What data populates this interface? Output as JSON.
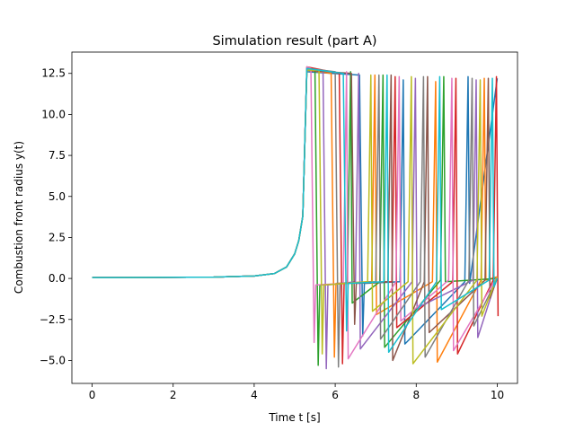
{
  "chart_data": {
    "type": "line",
    "title": "Simulation result (part A)",
    "xlabel": "Time t [s]",
    "ylabel": "Combustion front radius y(t)",
    "xlim": [
      -0.5,
      10.5
    ],
    "ylim": [
      -6.4,
      13.8
    ],
    "x_ticks": [
      0,
      2,
      4,
      6,
      8,
      10
    ],
    "y_ticks": [
      -5.0,
      -2.5,
      0.0,
      2.5,
      5.0,
      7.5,
      10.0,
      12.5
    ],
    "x_tick_labels": [
      "0",
      "2",
      "4",
      "6",
      "8",
      "10"
    ],
    "y_tick_labels": [
      "−5.0",
      "−2.5",
      "0.0",
      "2.5",
      "5.0",
      "7.5",
      "10.0",
      "12.5"
    ],
    "grid": false,
    "legend": "none",
    "colors": [
      "#1f77b4",
      "#ff7f0e",
      "#2ca02c",
      "#d62728",
      "#9467bd",
      "#8c564b",
      "#e377c2",
      "#7f7f7f",
      "#bcbd22",
      "#17becf"
    ],
    "series": [
      {
        "x": [
          0,
          3,
          4,
          4.5,
          4.8,
          5.0,
          5.1,
          5.2,
          5.3,
          6.6,
          6.68,
          6.72,
          7.6,
          7.68,
          7.72,
          9.2,
          9.28,
          9.32,
          10.0
        ],
        "y": [
          0.05,
          0.08,
          0.15,
          0.3,
          0.7,
          1.5,
          2.3,
          3.8,
          12.6,
          12.4,
          -3.5,
          -0.3,
          -0.2,
          12.1,
          -4.0,
          -0.2,
          12.3,
          -0.3,
          12.2
        ]
      },
      {
        "x": [
          0,
          3,
          4,
          4.5,
          4.8,
          5.0,
          5.1,
          5.2,
          5.3,
          5.9,
          5.98,
          6.02,
          6.9,
          6.98,
          7.02,
          8.4,
          8.48,
          8.52,
          9.6,
          9.68,
          9.72,
          10.0
        ],
        "y": [
          0.05,
          0.08,
          0.15,
          0.3,
          0.7,
          1.5,
          2.3,
          3.8,
          12.7,
          12.5,
          -4.8,
          -0.3,
          -0.2,
          12.4,
          -2.2,
          -0.2,
          12.0,
          -5.1,
          -0.1,
          12.2,
          -0.1,
          0.1
        ]
      },
      {
        "x": [
          0,
          3,
          4,
          4.5,
          4.8,
          5.0,
          5.1,
          5.2,
          5.3,
          5.5,
          5.58,
          5.62,
          6.3,
          6.38,
          6.42,
          7.1,
          7.18,
          7.22,
          8.6,
          8.68,
          8.72,
          10.0
        ],
        "y": [
          0.05,
          0.08,
          0.15,
          0.3,
          0.7,
          1.5,
          2.3,
          3.8,
          12.8,
          12.8,
          -5.3,
          -0.4,
          -0.3,
          12.6,
          -1.5,
          -0.2,
          12.4,
          -4.2,
          -0.1,
          12.3,
          -0.2,
          0.0
        ]
      },
      {
        "x": [
          0,
          3,
          4,
          4.5,
          4.8,
          5.0,
          5.1,
          5.2,
          5.3,
          6.1,
          6.18,
          6.22,
          7.4,
          7.48,
          7.52,
          8.9,
          8.98,
          9.02,
          9.9,
          9.98,
          10.02
        ],
        "y": [
          0.05,
          0.08,
          0.15,
          0.3,
          0.7,
          1.5,
          2.3,
          3.8,
          12.9,
          12.5,
          -5.2,
          -0.3,
          -0.2,
          12.3,
          -3.0,
          -0.2,
          12.2,
          -4.6,
          -0.1,
          12.3,
          -2.3
        ]
      },
      {
        "x": [
          0,
          3,
          4,
          4.5,
          4.8,
          5.0,
          5.1,
          5.2,
          5.3,
          5.7,
          5.78,
          5.82,
          6.5,
          6.58,
          6.62,
          7.9,
          7.98,
          8.02,
          9.4,
          9.48,
          9.52,
          10.0
        ],
        "y": [
          0.05,
          0.08,
          0.15,
          0.3,
          0.7,
          1.5,
          2.3,
          3.8,
          12.8,
          12.6,
          -5.5,
          -0.4,
          -0.2,
          12.5,
          -4.3,
          -0.2,
          12.2,
          -1.8,
          -0.1,
          12.1,
          -3.6,
          0.1
        ]
      },
      {
        "x": [
          0,
          3,
          4,
          4.5,
          4.8,
          5.0,
          5.1,
          5.2,
          5.3,
          6.4,
          6.48,
          6.52,
          7.3,
          7.38,
          7.42,
          8.2,
          8.28,
          8.32,
          9.7,
          9.78,
          9.82,
          10.0
        ],
        "y": [
          0.05,
          0.08,
          0.15,
          0.3,
          0.7,
          1.5,
          2.3,
          3.8,
          12.7,
          12.5,
          -2.8,
          -0.3,
          -0.2,
          12.4,
          -5.0,
          -0.2,
          12.3,
          -3.3,
          -0.1,
          12.2,
          -1.2,
          0.0
        ]
      },
      {
        "x": [
          0,
          3,
          4,
          4.5,
          4.8,
          5.0,
          5.1,
          5.2,
          5.3,
          5.4,
          5.48,
          5.52,
          6.2,
          6.28,
          6.32,
          7.5,
          7.58,
          7.62,
          8.8,
          8.88,
          8.92,
          10.0
        ],
        "y": [
          0.05,
          0.08,
          0.15,
          0.3,
          0.7,
          1.5,
          2.3,
          3.8,
          12.9,
          12.8,
          -3.9,
          -0.4,
          -0.3,
          12.6,
          -4.9,
          -0.2,
          12.3,
          -2.6,
          -0.1,
          12.2,
          -4.4,
          0.1
        ]
      },
      {
        "x": [
          0,
          3,
          4,
          4.5,
          4.8,
          5.0,
          5.1,
          5.2,
          5.3,
          6.0,
          6.08,
          6.12,
          7.0,
          7.08,
          7.12,
          8.1,
          8.18,
          8.22,
          9.3,
          9.38,
          9.42,
          10.0
        ],
        "y": [
          0.05,
          0.08,
          0.15,
          0.3,
          0.7,
          1.5,
          2.3,
          3.8,
          12.8,
          12.6,
          -5.4,
          -0.3,
          -0.2,
          12.4,
          -3.7,
          -0.2,
          12.3,
          -4.8,
          -0.1,
          12.2,
          -2.9,
          0.0
        ]
      },
      {
        "x": [
          0,
          3,
          4,
          4.5,
          4.8,
          5.0,
          5.1,
          5.2,
          5.3,
          5.6,
          5.68,
          5.72,
          6.8,
          6.88,
          6.92,
          7.8,
          7.88,
          7.92,
          9.5,
          9.58,
          9.62,
          10.0
        ],
        "y": [
          0.05,
          0.08,
          0.15,
          0.3,
          0.7,
          1.5,
          2.3,
          3.8,
          12.7,
          12.7,
          -4.6,
          -0.4,
          -0.2,
          12.4,
          -2.0,
          -0.2,
          12.3,
          -5.2,
          -0.1,
          12.1,
          -2.3,
          0.1
        ]
      },
      {
        "x": [
          0,
          3,
          4,
          4.5,
          4.8,
          5.0,
          5.1,
          5.2,
          5.3,
          6.2,
          6.28,
          6.32,
          7.2,
          7.28,
          7.32,
          8.5,
          8.58,
          8.62,
          9.8,
          9.88,
          9.92,
          10.0
        ],
        "y": [
          0.05,
          0.08,
          0.15,
          0.3,
          0.7,
          1.5,
          2.3,
          3.8,
          12.8,
          12.5,
          -3.2,
          -0.3,
          -0.2,
          12.4,
          -4.5,
          -0.2,
          12.3,
          -1.9,
          -0.1,
          12.2,
          -0.5,
          0.0
        ]
      }
    ]
  }
}
